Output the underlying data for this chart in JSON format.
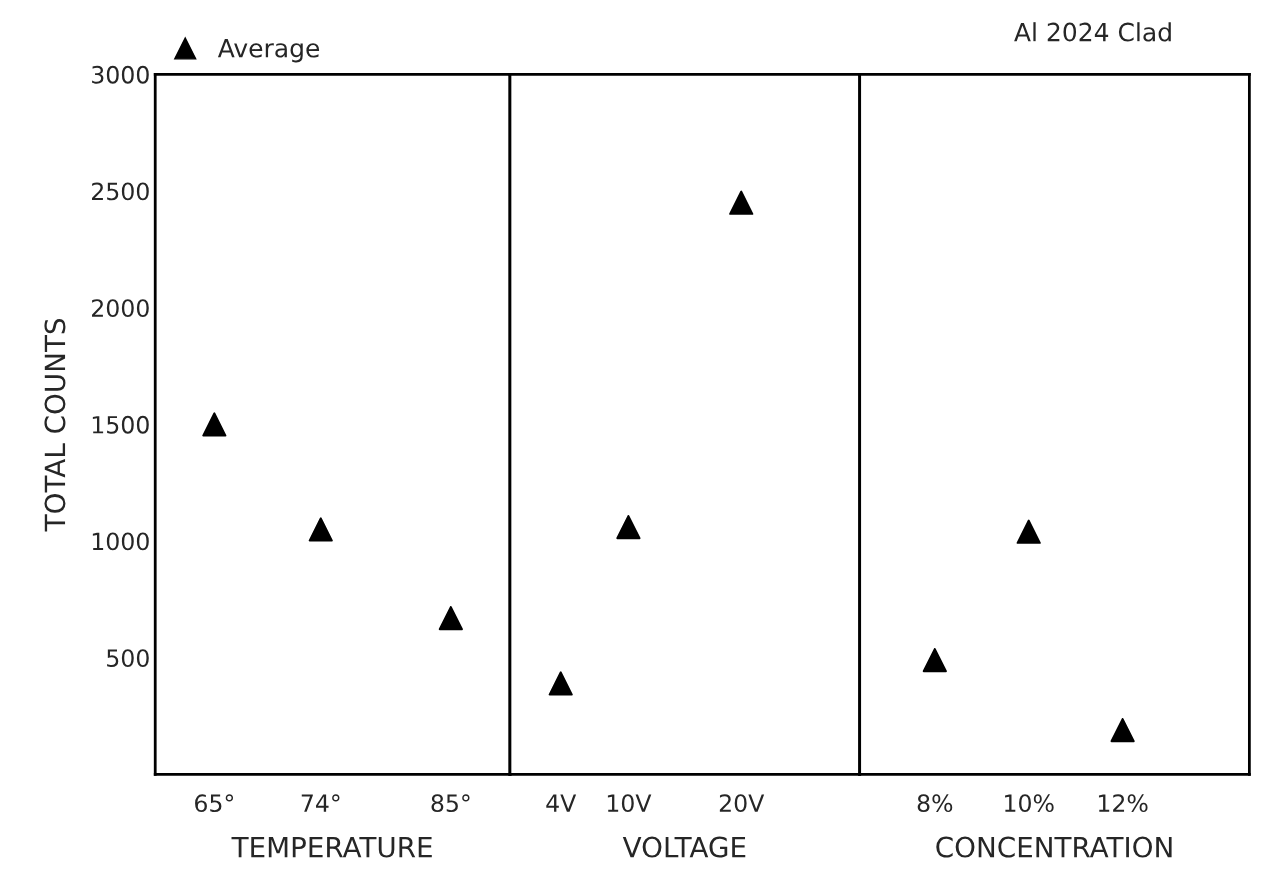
{
  "chart_data": [
    {
      "type": "scatter",
      "xlabel": "TEMPERATURE",
      "ylabel": "TOTAL COUNTS",
      "x": [
        65,
        74,
        85
      ],
      "xlim": [
        60,
        90
      ],
      "xticks": [
        {
          "value": 65,
          "label": "65°"
        },
        {
          "value": 74,
          "label": "74°"
        },
        {
          "value": 85,
          "label": "85°"
        }
      ],
      "ylim": [
        0,
        3000
      ],
      "yticks": [
        500,
        1000,
        1500,
        2000,
        2500,
        3000
      ],
      "marker": "triangle",
      "legend": "top left",
      "grid": false,
      "series": [
        {
          "name": "Average",
          "color": "#000000",
          "values": [
            1500,
            1050,
            670
          ]
        }
      ]
    },
    {
      "type": "scatter",
      "xlabel": "VOLTAGE",
      "x": [
        4,
        10,
        20
      ],
      "xlim": [
        -0.5,
        30.5
      ],
      "xticks": [
        {
          "value": 4,
          "label": "4V"
        },
        {
          "value": 10,
          "label": "10V"
        },
        {
          "value": 20,
          "label": "20V"
        }
      ],
      "ylim": [
        0,
        3000
      ],
      "tick_labels": "x",
      "marker": "triangle",
      "grid": false,
      "series": [
        {
          "color": "#000000",
          "values": [
            390,
            1060,
            2450
          ]
        }
      ]
    },
    {
      "type": "scatter",
      "xlabel": "CONCENTRATION",
      "x": [
        8,
        10,
        12
      ],
      "xlim": [
        6.4,
        14.7
      ],
      "xticks": [
        {
          "value": 8,
          "label": "8%"
        },
        {
          "value": 10,
          "label": "10%"
        },
        {
          "value": 12,
          "label": "12%"
        }
      ],
      "ylim": [
        0,
        3000
      ],
      "tick_labels": "x",
      "marker": "triangle",
      "grid": false,
      "annotations": [
        "Al 2024 Clad"
      ],
      "series": [
        {
          "color": "#000000",
          "values": [
            490,
            1040,
            190
          ]
        }
      ]
    }
  ]
}
